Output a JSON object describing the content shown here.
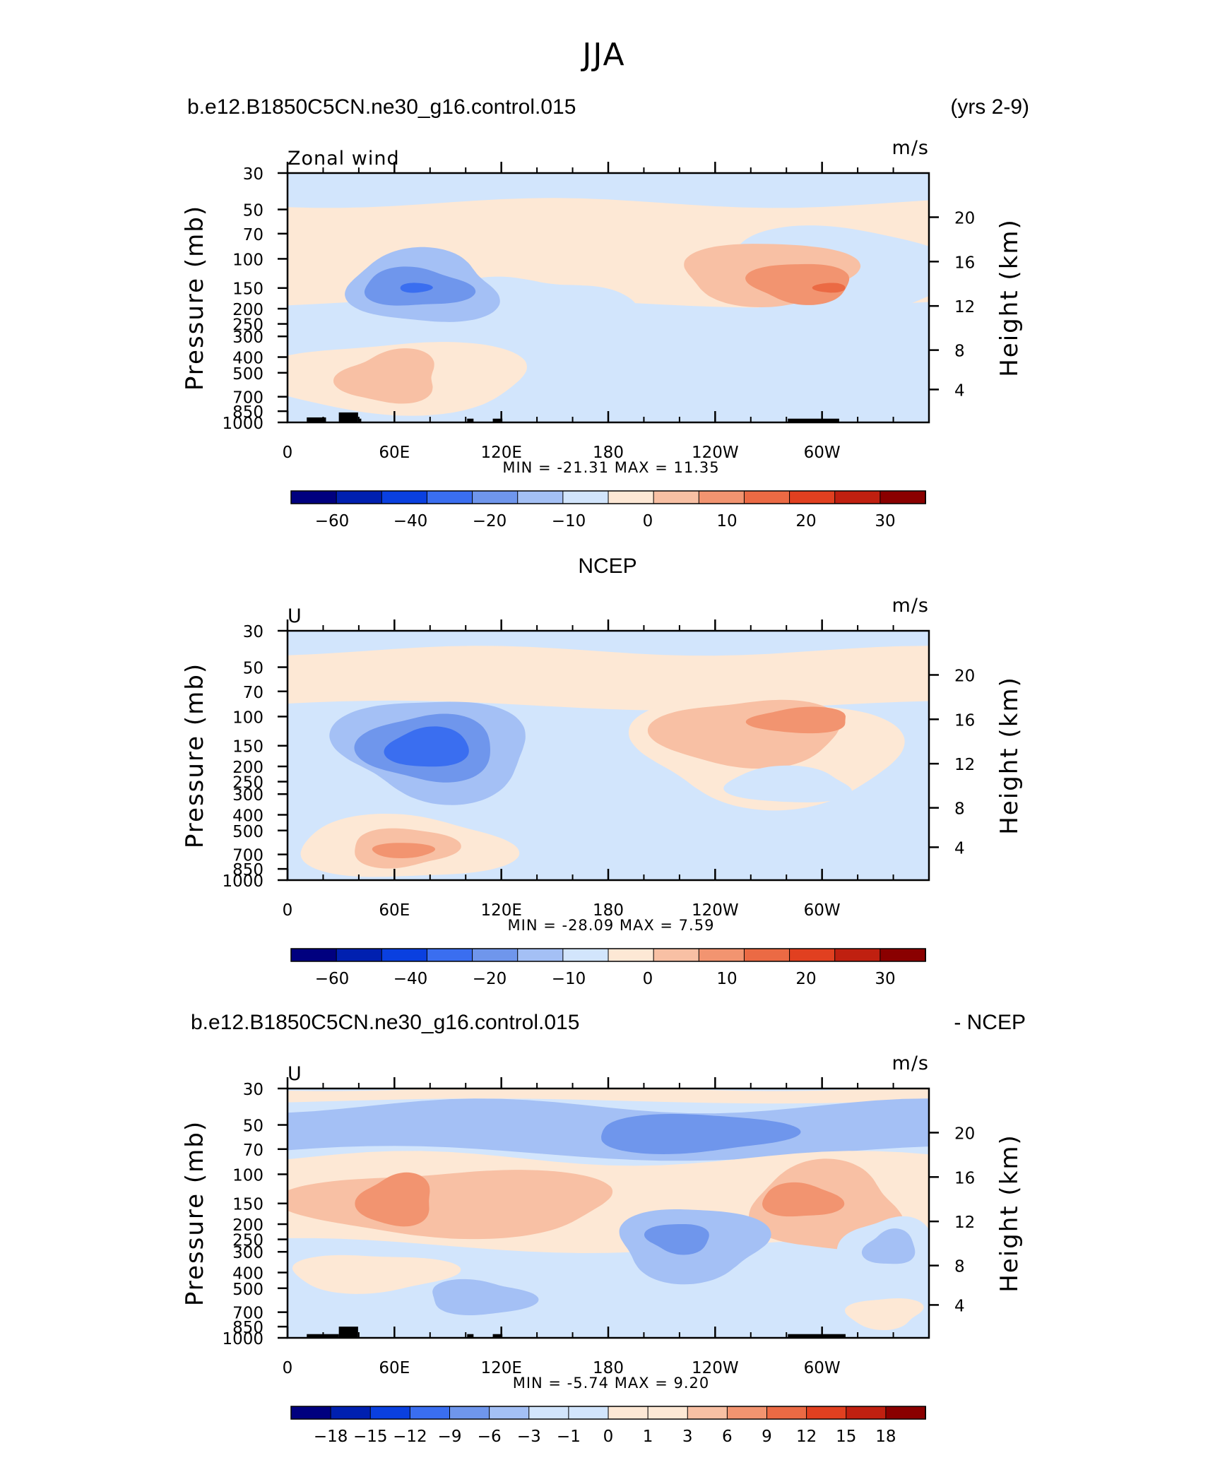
{
  "figure": {
    "season": "JJA",
    "panel1_header_left": "b.e12.B1850C5CN.ne30_g16.control.015",
    "panel1_header_right": "(yrs 2-9)",
    "panel2_header_center": "NCEP",
    "panel3_header_left": "b.e12.B1850C5CN.ne30_g16.control.015",
    "panel3_header_right": "- NCEP"
  },
  "chart_data": [
    {
      "type": "heatmap",
      "id": "model",
      "title": "Zonal wind",
      "units": "m/s",
      "ylabel": "Pressure (mb)",
      "ylabel_right": "Height (km)",
      "x_ticks": [
        "0",
        "60E",
        "120E",
        "180",
        "120W",
        "60W"
      ],
      "y_ticks": [
        "30",
        "50",
        "70",
        "100",
        "150",
        "200",
        "250",
        "300",
        "400",
        "500",
        "700",
        "850",
        "1000"
      ],
      "y_right_ticks": [
        "20",
        "16",
        "12",
        "8",
        "4"
      ],
      "stats_label": "MIN = -21.31   MAX = 11.35",
      "min": -21.31,
      "max": 11.35,
      "colorbar_labels": [
        "-60",
        "-40",
        "-20",
        "-10",
        "0",
        "10",
        "20",
        "30"
      ],
      "colorbar_levels": [
        -60,
        -50,
        -40,
        -30,
        -20,
        -15,
        -10,
        -5,
        0,
        5,
        10,
        15,
        20,
        25,
        30
      ],
      "features": [
        {
          "lon": 75,
          "p": 150,
          "value": -21,
          "note": "easterly core"
        },
        {
          "lon": 300,
          "p": 150,
          "value": 11,
          "note": "westerly core"
        }
      ]
    },
    {
      "type": "heatmap",
      "id": "ncep",
      "title": "U",
      "units": "m/s",
      "ylabel": "Pressure (mb)",
      "ylabel_right": "Height (km)",
      "x_ticks": [
        "0",
        "60E",
        "120E",
        "180",
        "120W",
        "60W"
      ],
      "y_ticks": [
        "30",
        "50",
        "70",
        "100",
        "150",
        "200",
        "250",
        "300",
        "400",
        "500",
        "700",
        "850",
        "1000"
      ],
      "y_right_ticks": [
        "20",
        "16",
        "12",
        "8",
        "4"
      ],
      "stats_label": "MIN = -28.09   MAX = 7.59",
      "min": -28.09,
      "max": 7.59,
      "colorbar_labels": [
        "-60",
        "-40",
        "-20",
        "-10",
        "0",
        "10",
        "20",
        "30"
      ],
      "colorbar_levels": [
        -60,
        -50,
        -40,
        -30,
        -20,
        -15,
        -10,
        -5,
        0,
        5,
        10,
        15,
        20,
        25,
        30
      ],
      "features": [
        {
          "lon": 80,
          "p": 150,
          "value": -28,
          "note": "easterly core"
        },
        {
          "lon": 290,
          "p": 110,
          "value": 7,
          "note": "westerly core"
        }
      ]
    },
    {
      "type": "heatmap",
      "id": "difference",
      "title": "U",
      "units": "m/s",
      "ylabel": "Pressure (mb)",
      "ylabel_right": "Height (km)",
      "x_ticks": [
        "0",
        "60E",
        "120E",
        "180",
        "120W",
        "60W"
      ],
      "y_ticks": [
        "30",
        "50",
        "70",
        "100",
        "150",
        "200",
        "250",
        "300",
        "400",
        "500",
        "700",
        "850",
        "1000"
      ],
      "y_right_ticks": [
        "20",
        "16",
        "12",
        "8",
        "4"
      ],
      "stats_label": "MIN = -5.74   MAX = 9.20",
      "min": -5.74,
      "max": 9.2,
      "colorbar_labels": [
        "-18",
        "-15",
        "-12",
        "-9",
        "-6",
        "-3",
        "-1",
        "0",
        "1",
        "3",
        "6",
        "9",
        "12",
        "15",
        "18"
      ],
      "colorbar_levels": [
        -21,
        -18,
        -15,
        -12,
        -9,
        -6,
        -3,
        -1,
        0,
        1,
        3,
        6,
        9,
        12,
        15,
        18,
        21
      ],
      "features": [
        {
          "lon": 70,
          "p": 150,
          "value": 8,
          "note": "positive bias"
        },
        {
          "lon": 285,
          "p": 150,
          "value": 9.2,
          "note": "positive bias"
        },
        {
          "lon": 220,
          "p": 60,
          "value": -5,
          "note": "negative bias"
        },
        {
          "lon": 335,
          "p": 300,
          "value": -5.7,
          "note": "negative bias"
        }
      ]
    }
  ],
  "colors": {
    "wind_scale": [
      "#00007f",
      "#0020b0",
      "#0a40e0",
      "#3a6ef0",
      "#6f96ec",
      "#a4c0f5",
      "#d2e5fc",
      "#fde8d5",
      "#f8c0a4",
      "#f29470",
      "#eb6a44",
      "#e14020",
      "#c02010",
      "#8a0000"
    ],
    "diff_scale": [
      "#00007f",
      "#0020b0",
      "#0a40e0",
      "#3a6ef0",
      "#6f96ec",
      "#a4c0f5",
      "#d2e5fc",
      "#d2e5fc",
      "#fde8d5",
      "#fde8d5",
      "#f8c0a4",
      "#f29470",
      "#eb6a44",
      "#e14020",
      "#c02010",
      "#8a0000"
    ],
    "land": "#000000"
  }
}
